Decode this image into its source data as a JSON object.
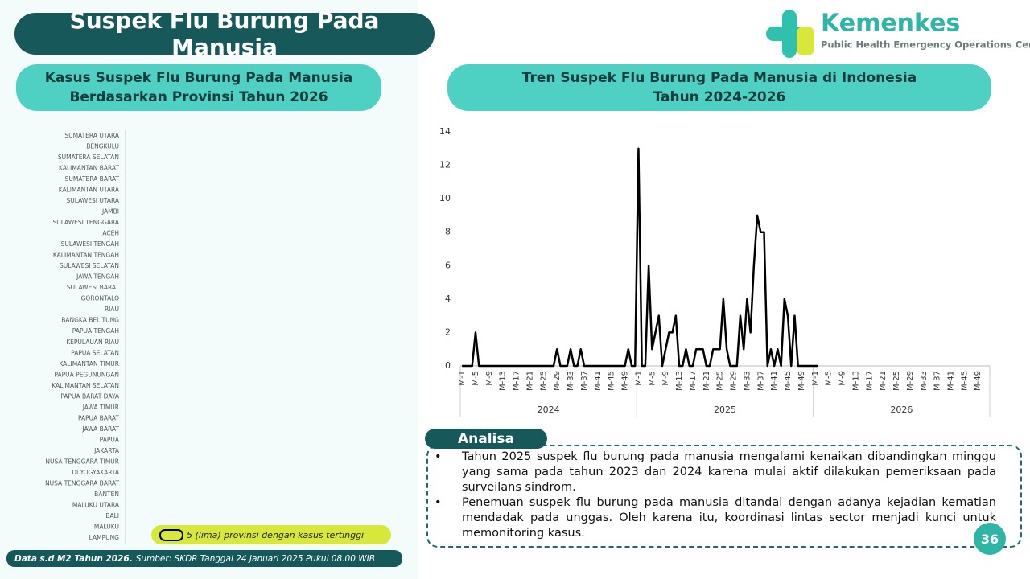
{
  "header": {
    "title": "Suspek Flu Burung Pada Manusia",
    "logo_name": "Kemenkes",
    "logo_subtitle": "Public Health Emergency Operations Center"
  },
  "chart_data": [
    {
      "type": "bar",
      "title": [
        "Kasus Suspek Flu Burung Pada Manusia",
        "Berdasarkan Provinsi Tahun 2026"
      ],
      "categories": [
        "SUMATERA UTARA",
        "BENGKULU",
        "SUMATERA SELATAN",
        "KALIMANTAN BARAT",
        "SUMATERA BARAT",
        "KALIMANTAN UTARA",
        "SULAWESI UTARA",
        "JAMBI",
        "SULAWESI TENGGARA",
        "ACEH",
        "SULAWESI TENGAH",
        "KALIMANTAN TENGAH",
        "SULAWESI SELATAN",
        "JAWA TENGAH",
        "SULAWESI BARAT",
        "GORONTALO",
        "RIAU",
        "BANGKA BELITUNG",
        "PAPUA TENGAH",
        "KEPULAUAN RIAU",
        "PAPUA SELATAN",
        "KALIMANTAN TIMUR",
        "PAPUA PEGUNUNGAN",
        "KALIMANTAN SELATAN",
        "PAPUA BARAT DAYA",
        "JAWA TIMUR",
        "PAPUA BARAT",
        "JAWA BARAT",
        "PAPUA",
        "JAKARTA",
        "NUSA TENGGARA TIMUR",
        "DI YOGYAKARTA",
        "NUSA TENGGARA BARAT",
        "BANTEN",
        "MALUKU UTARA",
        "BALI",
        "MALUKU",
        "LAMPUNG"
      ],
      "legend_note": "5 (lima) provinsi dengan kasus tertinggi"
    },
    {
      "type": "line",
      "title": [
        "Tren Suspek Flu Burung Pada Manusia di Indonesia",
        "Tahun 2024-2026"
      ],
      "group_labels": [
        "2024",
        "2025",
        "2026"
      ],
      "categories": [
        "M-1",
        null,
        null,
        null,
        "M-5",
        null,
        null,
        null,
        "M-9",
        null,
        null,
        null,
        "M-13",
        null,
        null,
        null,
        "M-17",
        null,
        null,
        null,
        "M-21",
        null,
        null,
        null,
        "M-25",
        null,
        null,
        null,
        "M-29",
        null,
        null,
        null,
        "M-33",
        null,
        null,
        null,
        "M-37",
        null,
        null,
        null,
        "M-41",
        null,
        null,
        null,
        "M-45",
        null,
        null,
        null,
        "M-49",
        null,
        null,
        null,
        "M-1",
        null,
        null,
        null,
        "M-5",
        null,
        null,
        null,
        "M-9",
        null,
        null,
        null,
        "M-13",
        null,
        null,
        null,
        "M-17",
        null,
        null,
        null,
        "M-21",
        null,
        null,
        null,
        "M-25",
        null,
        null,
        null,
        "M-29",
        null,
        null,
        null,
        "M-33",
        null,
        null,
        null,
        "M-37",
        null,
        null,
        null,
        "M-41",
        null,
        null,
        null,
        "M-45",
        null,
        null,
        null,
        "M-49",
        null,
        null,
        null,
        "M-1",
        null,
        null,
        null,
        "M-5",
        null,
        null,
        null,
        "M-9",
        null,
        null,
        null,
        "M-13",
        null,
        null,
        null,
        "M-17",
        null,
        null,
        null,
        "M-21",
        null,
        null,
        null,
        "M-25",
        null,
        null,
        null,
        "M-29",
        null,
        null,
        null,
        "M-33",
        null,
        null,
        null,
        "M-37",
        null,
        null,
        null,
        "M-41",
        null,
        null,
        null,
        "M-45",
        null,
        null,
        null,
        "M-49",
        null,
        null,
        null
      ],
      "values": [
        0,
        0,
        0,
        0,
        2,
        0,
        0,
        0,
        0,
        0,
        0,
        0,
        0,
        0,
        0,
        0,
        0,
        0,
        0,
        0,
        0,
        0,
        0,
        0,
        0,
        0,
        0,
        0,
        1,
        0,
        0,
        0,
        1,
        0,
        0,
        1,
        0,
        0,
        0,
        0,
        0,
        0,
        0,
        0,
        0,
        0,
        0,
        0,
        0,
        1,
        0,
        0,
        13,
        0,
        0,
        6,
        1,
        2,
        3,
        0,
        1,
        2,
        2,
        3,
        0,
        0,
        1,
        0,
        0,
        1,
        1,
        1,
        0,
        0,
        1,
        1,
        1,
        4,
        1,
        0,
        0,
        0,
        3,
        1,
        4,
        2,
        6,
        9,
        8,
        8,
        0,
        1,
        0,
        1,
        0,
        4,
        3,
        0,
        3,
        0,
        0,
        0,
        0,
        0,
        0,
        0,
        null,
        null,
        null,
        null,
        null,
        null,
        null,
        null,
        null,
        null,
        null,
        null,
        null,
        null,
        null,
        null,
        null,
        null,
        null,
        null,
        null,
        null,
        null,
        null,
        null,
        null,
        null,
        null,
        null,
        null,
        null,
        null,
        null,
        null,
        null,
        null,
        null,
        null,
        null,
        null,
        null,
        null,
        null,
        null,
        null,
        null,
        null,
        null,
        null,
        null
      ],
      "color": "#000000",
      "ylim": [
        0,
        14
      ],
      "yticks": [
        0,
        2,
        4,
        6,
        8,
        10,
        12,
        14
      ]
    }
  ],
  "analysis": {
    "title": "Analisa",
    "bullets": [
      "Tahun 2025 suspek flu burung pada manusia mengalami kenaikan dibandingkan minggu yang sama pada tahun 2023 dan 2024 karena mulai aktif dilakukan pemeriksaan pada surveilans sindrom.",
      "Penemuan suspek flu burung pada manusia ditandai dengan adanya kejadian kematian mendadak pada unggas. Oleh karena itu, koordinasi lintas sector menjadi kunci untuk memonitoring kasus."
    ]
  },
  "footer": {
    "data_note": "Data s.d M2 Tahun 2026.",
    "source": "Sumber: SKDR Tanggal 24 Januari 2025 Pukul 08.00 WIB"
  },
  "page_number": "36"
}
